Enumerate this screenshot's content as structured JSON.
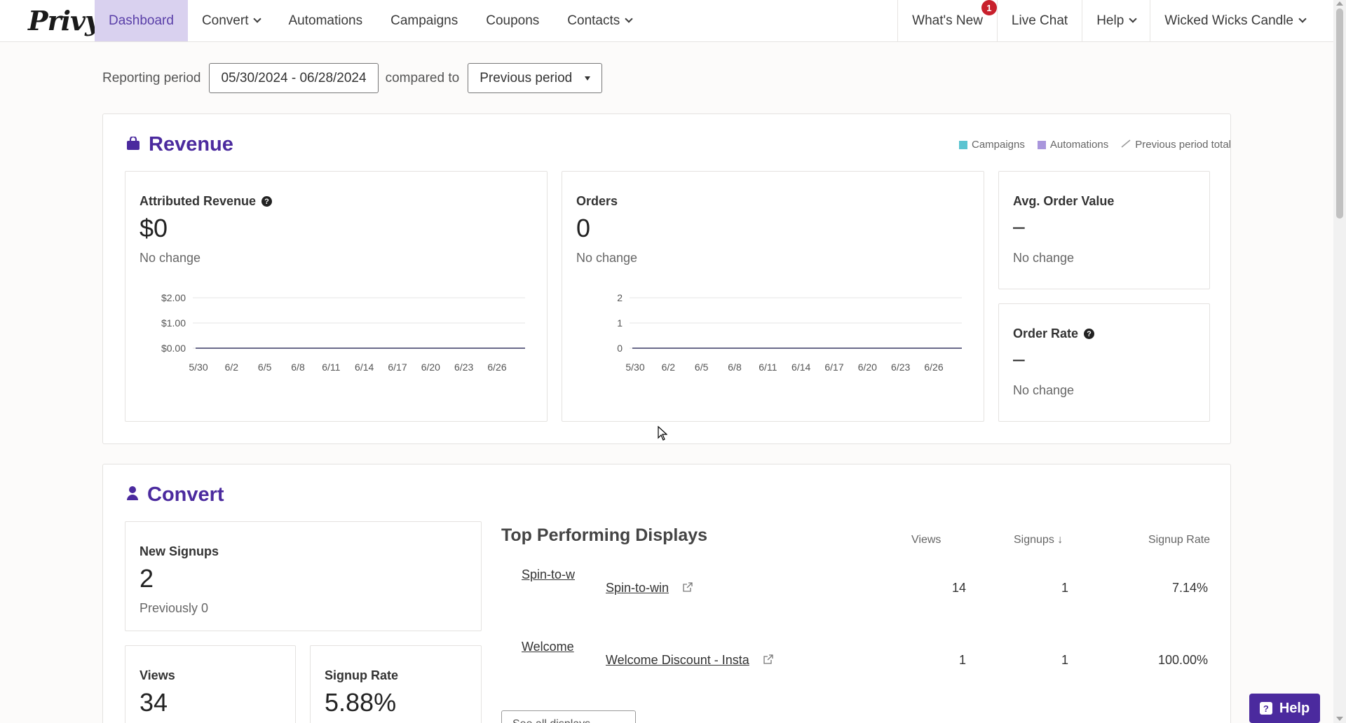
{
  "nav": {
    "logo": "Privy",
    "items": [
      {
        "label": "Dashboard",
        "active": true
      },
      {
        "label": "Convert",
        "dropdown": true
      },
      {
        "label": "Automations"
      },
      {
        "label": "Campaigns"
      },
      {
        "label": "Coupons"
      },
      {
        "label": "Contacts",
        "dropdown": true
      }
    ],
    "right": {
      "whats_new": "What's New",
      "whats_new_badge": "1",
      "live_chat": "Live Chat",
      "help": "Help",
      "account": "Wicked Wicks Candle"
    }
  },
  "period": {
    "label": "Reporting period",
    "range": "05/30/2024 - 06/28/2024",
    "compared_label": "compared to",
    "compare_value": "Previous period"
  },
  "revenue": {
    "title": "Revenue",
    "legend": [
      {
        "label": "Campaigns",
        "color": "#5bc4d1"
      },
      {
        "label": "Automations",
        "color": "#a996dc"
      },
      {
        "label": "Previous period total",
        "color": "#999999"
      }
    ],
    "attributed": {
      "title": "Attributed Revenue",
      "value": "$0",
      "sub": "No change"
    },
    "orders": {
      "title": "Orders",
      "value": "0",
      "sub": "No change"
    },
    "aov": {
      "title": "Avg. Order Value",
      "value": "–",
      "sub": "No change"
    },
    "order_rate": {
      "title": "Order Rate",
      "value": "–",
      "sub": "No change"
    }
  },
  "chart_data": [
    {
      "type": "line",
      "x": [
        "5/30",
        "6/2",
        "6/5",
        "6/8",
        "6/11",
        "6/14",
        "6/17",
        "6/20",
        "6/23",
        "6/26"
      ],
      "y_ticks": [
        "$2.00",
        "$1.00",
        "$0.00"
      ],
      "ylim": [
        0,
        2
      ],
      "series": [
        {
          "values": [
            0,
            0,
            0,
            0,
            0,
            0,
            0,
            0,
            0,
            0
          ]
        }
      ]
    },
    {
      "type": "line",
      "x": [
        "5/30",
        "6/2",
        "6/5",
        "6/8",
        "6/11",
        "6/14",
        "6/17",
        "6/20",
        "6/23",
        "6/26"
      ],
      "y_ticks": [
        "2",
        "1",
        "0"
      ],
      "ylim": [
        0,
        2
      ],
      "series": [
        {
          "values": [
            0,
            0,
            0,
            0,
            0,
            0,
            0,
            0,
            0,
            0
          ]
        }
      ]
    }
  ],
  "convert": {
    "title": "Convert",
    "new_signups": {
      "title": "New Signups",
      "value": "2",
      "sub": "Previously 0"
    },
    "views": {
      "title": "Views",
      "value": "34"
    },
    "signup_rate": {
      "title": "Signup Rate",
      "value": "5.88%"
    },
    "top_displays": {
      "title": "Top Performing Displays",
      "col_views": "Views",
      "col_signups": "Signups ↓",
      "col_rate": "Signup Rate",
      "rows": [
        {
          "img_alt": "Spin-to-w",
          "name": "Spin-to-win",
          "views": "14",
          "signups": "1",
          "rate": "7.14%"
        },
        {
          "img_alt": "Welcome ",
          "name": "Welcome Discount - Insta",
          "views": "1",
          "signups": "1",
          "rate": "100.00%"
        }
      ],
      "see_all": "See all displays →"
    }
  },
  "help_button": "Help"
}
